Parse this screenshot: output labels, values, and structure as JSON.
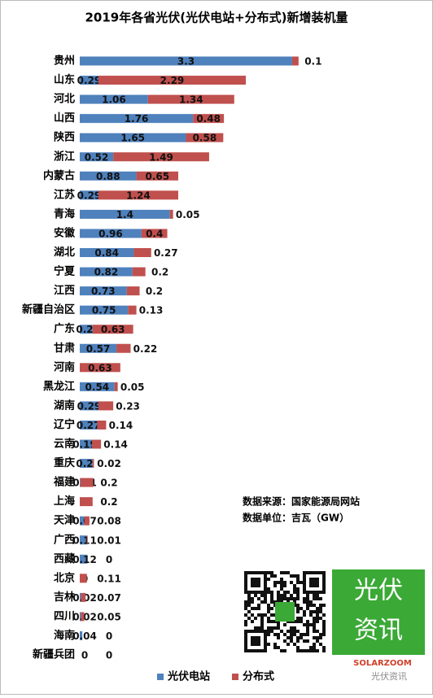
{
  "chart_data": {
    "type": "stacked-barh",
    "title": "2019年各省光伏(光伏电站+分布式)新增装机量",
    "categories": [
      "贵州",
      "山东",
      "河北",
      "山西",
      "陕西",
      "浙江",
      "内蒙古",
      "江苏",
      "青海",
      "安徽",
      "湖北",
      "宁夏",
      "江西",
      "新疆自治区",
      "广东",
      "甘肃",
      "河南",
      "黑龙江",
      "湖南",
      "辽宁",
      "云南",
      "重庆",
      "福建",
      "上海",
      "天津",
      "广西",
      "西藏",
      "北京",
      "吉林",
      "四川",
      "海南",
      "新疆兵团"
    ],
    "series": [
      {
        "name": "光伏电站",
        "color": "#4f81bd",
        "values": [
          3.3,
          0.29,
          1.06,
          1.76,
          1.65,
          0.52,
          0.88,
          0.29,
          1.4,
          0.96,
          0.84,
          0.82,
          0.73,
          0.75,
          0.2,
          0.57,
          0,
          0.54,
          0.29,
          0.27,
          0.19,
          0.2,
          0.01,
          0,
          0.07,
          0.11,
          0.12,
          0,
          0.02,
          0.02,
          0.04,
          0
        ]
      },
      {
        "name": "分布式",
        "color": "#c0504d",
        "values": [
          0.1,
          2.29,
          1.34,
          0.48,
          0.58,
          1.49,
          0.65,
          1.24,
          0.05,
          0.4,
          0.27,
          0.2,
          0.2,
          0.13,
          0.63,
          0.22,
          0.63,
          0.05,
          0.23,
          0.14,
          0.14,
          0.02,
          0.2,
          0.2,
          0.08,
          0.01,
          0,
          0.11,
          0.07,
          0.05,
          0,
          0
        ]
      }
    ],
    "xlim": [
      0,
      4.3
    ],
    "legend": "bottom",
    "source": "数据来源：国家能源局网站",
    "unit": "数据单位：吉瓦（GW）",
    "logo_text": [
      "光伏",
      "资讯"
    ],
    "brand": "SOLARZOOM",
    "watermark": "光伏资讯"
  }
}
